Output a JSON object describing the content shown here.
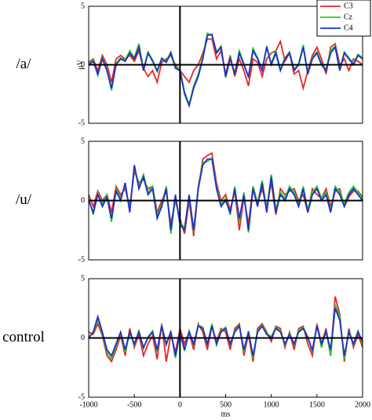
{
  "chart_data": [
    {
      "type": "line",
      "title": "/a/",
      "ylabel": "μV",
      "legend": "upper right",
      "x": [
        -1000,
        -950,
        -900,
        -850,
        -800,
        -750,
        -700,
        -650,
        -600,
        -550,
        -500,
        -450,
        -400,
        -350,
        -300,
        -250,
        -200,
        -150,
        -100,
        -50,
        0,
        50,
        100,
        150,
        200,
        250,
        300,
        350,
        400,
        450,
        500,
        550,
        600,
        650,
        700,
        750,
        800,
        850,
        900,
        950,
        1000,
        1050,
        1100,
        1150,
        1200,
        1250,
        1300,
        1350,
        1400,
        1450,
        1500,
        1550,
        1600,
        1650,
        1700,
        1750,
        1800,
        1850,
        1900,
        1950,
        2000
      ],
      "xlim": [
        -1000,
        2000
      ],
      "ylim": [
        -5,
        5
      ],
      "yticks": [
        -5,
        0,
        5
      ],
      "series": [
        {
          "name": "C3",
          "color": "#e8262b",
          "values": [
            0.2,
            0.5,
            -0.5,
            0.8,
            0,
            -1.5,
            0.5,
            0.8,
            0.5,
            0.8,
            0.3,
            1.2,
            -0.3,
            -1,
            -0.5,
            -1.5,
            0.2,
            0.5,
            0.8,
            0,
            -0.5,
            -1,
            -1.5,
            -0.5,
            0,
            1,
            2.2,
            2.2,
            0.5,
            1.2,
            -0.8,
            0.8,
            -1,
            0.5,
            -0.5,
            -1.8,
            0.5,
            0.2,
            -1,
            0.5,
            1,
            1.2,
            2,
            0.3,
            1,
            -0.8,
            -0.5,
            -2,
            -0.5,
            0.8,
            1.5,
            0.5,
            -0.8,
            1.5,
            1.8,
            0,
            0.5,
            -0.5,
            0.5,
            0.3,
            0
          ]
        },
        {
          "name": "Cz",
          "color": "#22cc22",
          "values": [
            0.1,
            0.4,
            -0.9,
            0.6,
            -0.4,
            -2.2,
            0.1,
            0.6,
            0.4,
            1.2,
            0.6,
            1.8,
            -0.4,
            1.1,
            0.4,
            -0.6,
            0.6,
            0.3,
            1.1,
            -0.2,
            -0.4,
            -2.3,
            -3.4,
            -1.8,
            -0.8,
            0.7,
            2.7,
            2.5,
            1.1,
            1.6,
            -1.1,
            0.6,
            -0.7,
            1.2,
            0.1,
            -1.1,
            1.4,
            0.6,
            -0.4,
            1.6,
            0.1,
            1.2,
            -0.4,
            0.6,
            1.1,
            -0.4,
            0.1,
            1.7,
            -0.7,
            0.6,
            1.1,
            0.1,
            -0.4,
            1.2,
            1.6,
            -0.4,
            1.1,
            0.6,
            0.1,
            0.9,
            0.6
          ]
        },
        {
          "name": "C4",
          "color": "#1f2fcc",
          "values": [
            0,
            0.3,
            -0.8,
            0.5,
            -0.5,
            -2,
            0,
            0.5,
            0.3,
            1,
            0.5,
            1.5,
            -0.5,
            1,
            0.3,
            -0.5,
            0.5,
            0.2,
            1,
            -0.3,
            -0.5,
            -2.5,
            -3.5,
            -2,
            -1,
            0.5,
            2.5,
            2.6,
            1,
            1.5,
            -1,
            0.5,
            -0.8,
            1,
            0,
            -1,
            1.2,
            0.5,
            -0.5,
            1.5,
            0,
            1,
            -0.5,
            0.5,
            1,
            -0.5,
            0,
            1.5,
            -0.8,
            0.5,
            1,
            0,
            -0.5,
            1,
            1.5,
            -0.5,
            1,
            0.5,
            0,
            0.8,
            0.5
          ]
        }
      ]
    },
    {
      "type": "line",
      "title": "/u/",
      "x": [
        -1000,
        -950,
        -900,
        -850,
        -800,
        -750,
        -700,
        -650,
        -600,
        -550,
        -500,
        -450,
        -400,
        -350,
        -300,
        -250,
        -200,
        -150,
        -100,
        -50,
        0,
        50,
        100,
        150,
        200,
        250,
        300,
        350,
        400,
        450,
        500,
        550,
        600,
        650,
        700,
        750,
        800,
        850,
        900,
        950,
        1000,
        1050,
        1100,
        1150,
        1200,
        1250,
        1300,
        1350,
        1400,
        1450,
        1500,
        1550,
        1600,
        1650,
        1700,
        1750,
        1800,
        1850,
        1900,
        1950,
        2000
      ],
      "xlim": [
        -1000,
        2000
      ],
      "ylim": [
        -5,
        5
      ],
      "yticks": [
        -5,
        0,
        5
      ],
      "series": [
        {
          "color": "#e8262b",
          "values": [
            0.5,
            -0.5,
            0.8,
            0,
            0.5,
            -1,
            1.2,
            0.5,
            1,
            -0.5,
            2.5,
            1.5,
            1.8,
            1,
            1.2,
            -1,
            0,
            0.8,
            -2,
            0,
            -1.5,
            -2.8,
            0,
            -3,
            1,
            3.5,
            3.8,
            4,
            1.5,
            0,
            0.5,
            -0.8,
            0.8,
            -2.5,
            0.3,
            -2,
            1.2,
            -0.2,
            1,
            -0.5,
            1.5,
            -1.2,
            1,
            0.5,
            0.8,
            1,
            0,
            0.5,
            -1,
            1,
            0.5,
            0.2,
            1,
            -0.5,
            0.8,
            1,
            -0.5,
            0.3,
            0.8,
            0.8,
            0.3
          ]
        },
        {
          "color": "#22cc22",
          "values": [
            0.2,
            -1.2,
            0.6,
            -0.3,
            0.5,
            -1.8,
            1,
            0.2,
            1.3,
            -0.8,
            2.8,
            1.2,
            2.2,
            0.7,
            1.2,
            -1.3,
            -0.3,
            1.2,
            -2.8,
            0.3,
            -1.8,
            -2.3,
            0.3,
            -2.7,
            1.2,
            3.2,
            3.3,
            3.6,
            1.2,
            -0.3,
            0.2,
            -1.2,
            1.2,
            -1.8,
            0.7,
            -2.7,
            1.2,
            -0.3,
            1.7,
            -0.8,
            2.2,
            -0.8,
            0.7,
            0.2,
            1.2,
            0.7,
            -0.3,
            1.2,
            -0.8,
            0.7,
            1.2,
            0.2,
            0.7,
            -0.8,
            1.2,
            0.7,
            -0.3,
            0.7,
            1.2,
            0.7,
            0.2
          ]
        },
        {
          "color": "#1f2fcc",
          "values": [
            0,
            -1,
            0.5,
            -0.5,
            0.3,
            -1.5,
            0.8,
            0,
            1.5,
            -1,
            3,
            1,
            2,
            0.5,
            1,
            -1.5,
            -0.5,
            1,
            -2.5,
            0.5,
            -2,
            -2.5,
            0.5,
            -2.5,
            1,
            3,
            3.5,
            3.5,
            1,
            -0.5,
            0,
            -1,
            1,
            -1.5,
            0.5,
            -2.5,
            1,
            -0.5,
            1.5,
            -1,
            2,
            -1,
            0.5,
            0,
            1,
            0.5,
            -0.5,
            1,
            -1,
            0.5,
            1,
            0,
            0.5,
            -1,
            1,
            0.5,
            -0.5,
            0.5,
            1,
            0.5,
            0
          ]
        }
      ]
    },
    {
      "type": "line",
      "title": "control",
      "xlabel": "ms",
      "x": [
        -1000,
        -950,
        -900,
        -850,
        -800,
        -750,
        -700,
        -650,
        -600,
        -550,
        -500,
        -450,
        -400,
        -350,
        -300,
        -250,
        -200,
        -150,
        -100,
        -50,
        0,
        50,
        100,
        150,
        200,
        250,
        300,
        350,
        400,
        450,
        500,
        550,
        600,
        650,
        700,
        750,
        800,
        850,
        900,
        950,
        1000,
        1050,
        1100,
        1150,
        1200,
        1250,
        1300,
        1350,
        1400,
        1450,
        1500,
        1550,
        1600,
        1650,
        1700,
        1750,
        1800,
        1850,
        1900,
        1950,
        2000
      ],
      "xlim": [
        -1000,
        2000
      ],
      "xticks": [
        -1000,
        -500,
        0,
        500,
        1000,
        1500,
        2000
      ],
      "ylim": [
        -5,
        5
      ],
      "yticks": [
        -5,
        0,
        5
      ],
      "series": [
        {
          "color": "#e8262b",
          "values": [
            0.5,
            0.3,
            1.2,
            0.2,
            -1.5,
            -2,
            -1,
            0.2,
            -1.5,
            0.8,
            -0.8,
            0.3,
            -1.5,
            -0.5,
            0.2,
            -1.8,
            1.2,
            -2,
            0.3,
            -1.2,
            0.8,
            -0.5,
            0.5,
            -1,
            1.2,
            0.5,
            -1,
            1,
            -0.3,
            0.8,
            0.5,
            -1,
            0.8,
            1.2,
            -1.5,
            0.3,
            -2,
            0.8,
            1.2,
            0.5,
            -0.3,
            1,
            0.8,
            -0.8,
            0.5,
            -1,
            0.8,
            1,
            -0.5,
            -1.5,
            1.2,
            -0.5,
            0.8,
            -1.5,
            3.5,
            2,
            -2,
            0.8,
            -0.8,
            0.3,
            -0.8
          ]
        },
        {
          "color": "#22cc22",
          "values": [
            0.1,
            0.4,
            1.6,
            0.4,
            -1.2,
            -1.8,
            -0.6,
            0.4,
            -1.2,
            0.4,
            -0.6,
            0.6,
            -0.9,
            0.1,
            0.6,
            -1.2,
            1.1,
            -0.6,
            0.6,
            -1.7,
            0.4,
            -1.1,
            0.6,
            -0.6,
            1.1,
            0.9,
            -0.6,
            1.2,
            -0.6,
            0.6,
            0.9,
            -0.6,
            0.6,
            1.1,
            -1.2,
            0.6,
            -1.7,
            0.6,
            1.1,
            0.4,
            0.1,
            0.9,
            0.6,
            -0.6,
            0.4,
            -0.6,
            0.6,
            0.9,
            0.1,
            -1.2,
            1.1,
            -0.8,
            0.6,
            -1.5,
            2.8,
            1.8,
            -1.8,
            0.6,
            -0.6,
            0.6,
            -0.5
          ]
        },
        {
          "color": "#1f2fcc",
          "values": [
            0,
            0.5,
            1.8,
            0.5,
            -1,
            -1.5,
            -0.5,
            0.5,
            -1,
            0.5,
            -0.5,
            0.5,
            -0.8,
            0,
            0.5,
            -1,
            1,
            -0.5,
            0.5,
            -1.5,
            0.5,
            -1,
            0.5,
            -0.5,
            1,
            0.8,
            -0.5,
            1,
            -0.5,
            0.5,
            0.8,
            -0.5,
            0.5,
            1,
            -1,
            0.5,
            -1.5,
            0.5,
            1,
            0.3,
            0,
            0.8,
            0.5,
            -0.5,
            0.3,
            -0.5,
            0.5,
            0.8,
            0,
            -1,
            1,
            -0.5,
            0.5,
            -1,
            2.5,
            1.5,
            -1.5,
            0.5,
            -0.5,
            0.5,
            -0.3
          ]
        }
      ]
    }
  ]
}
